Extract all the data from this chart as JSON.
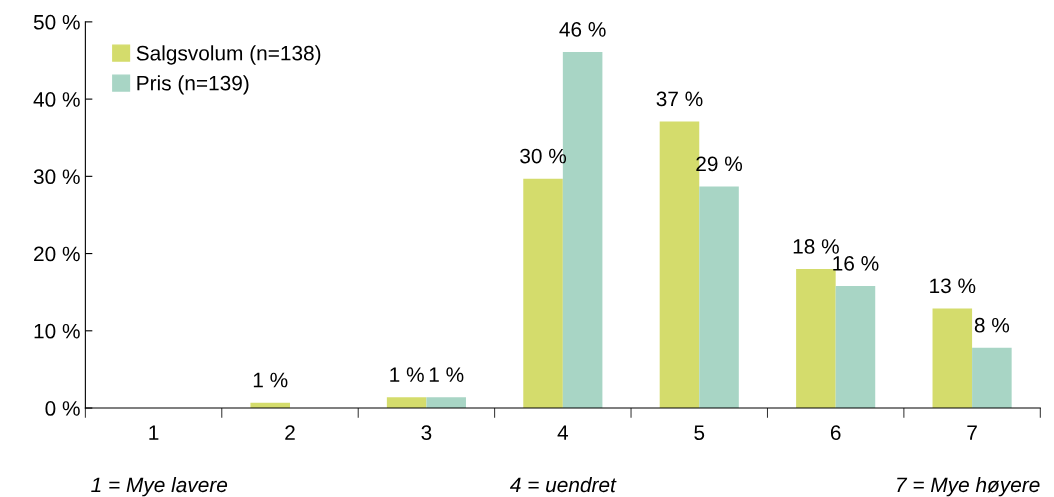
{
  "chart_data": {
    "type": "bar",
    "categories": [
      "1",
      "2",
      "3",
      "4",
      "5",
      "6",
      "7"
    ],
    "series": [
      {
        "name": "Salgsvolum (n=138)",
        "color": "#d4dc6c",
        "values": [
          0,
          0.7,
          1.4,
          29.7,
          37.1,
          18.0,
          12.9
        ],
        "value_labels": [
          null,
          "1 %",
          "1 %",
          "30 %",
          "37 %",
          "18 %",
          "13 %"
        ]
      },
      {
        "name": "Pris (n=139)",
        "color": "#a8d5c5",
        "values": [
          0,
          0,
          1.4,
          46.1,
          28.7,
          15.8,
          7.8
        ],
        "value_labels": [
          null,
          null,
          "1 %",
          "46 %",
          "29 %",
          "16 %",
          "8 %"
        ]
      }
    ],
    "ylim": [
      0,
      50
    ],
    "yticks": [
      {
        "value": 0,
        "label": "0 %"
      },
      {
        "value": 10,
        "label": "10 %"
      },
      {
        "value": 20,
        "label": "20 %"
      },
      {
        "value": 30,
        "label": "30 %"
      },
      {
        "value": 40,
        "label": "40 %"
      },
      {
        "value": 50,
        "label": "50 %"
      }
    ],
    "grid": false,
    "legend": "top left",
    "annotations": [
      "1 = Mye lavere",
      "4 = uendret",
      "7 = Mye høyere"
    ]
  }
}
